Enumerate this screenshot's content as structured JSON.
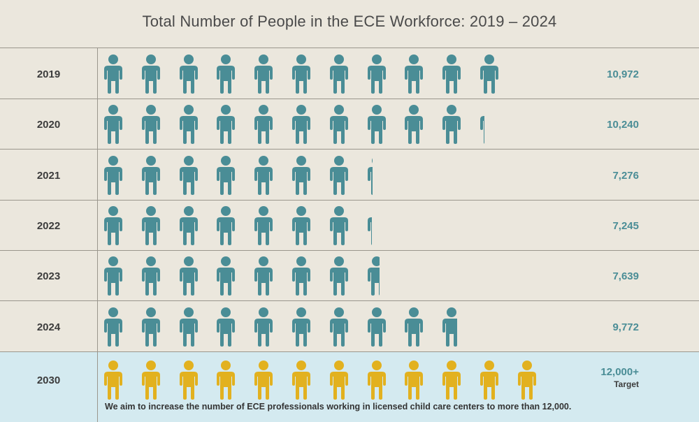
{
  "title": "Total Number of People in the ECE Workforce: 2019 – 2024",
  "colors": {
    "background": "#ebe7dd",
    "teal": "#4a8d96",
    "gold": "#e2b11f",
    "target_row": "#d4eaf0",
    "lines": "#9a968d"
  },
  "chart_data": {
    "type": "pictograph",
    "icon": "person-icon",
    "categories": [
      "2019",
      "2020",
      "2021",
      "2022",
      "2023",
      "2024",
      "2030"
    ],
    "values": [
      10972,
      10240,
      7276,
      7245,
      7639,
      9772,
      12000
    ],
    "value_labels": [
      "10,972",
      "10,240",
      "7,276",
      "7,245",
      "7,639",
      "9,772",
      "12,000+"
    ],
    "target_sublabel": "Target",
    "note": "We aim to increase the number of ECE professionals working in licensed child care centers to more than 12,000."
  }
}
